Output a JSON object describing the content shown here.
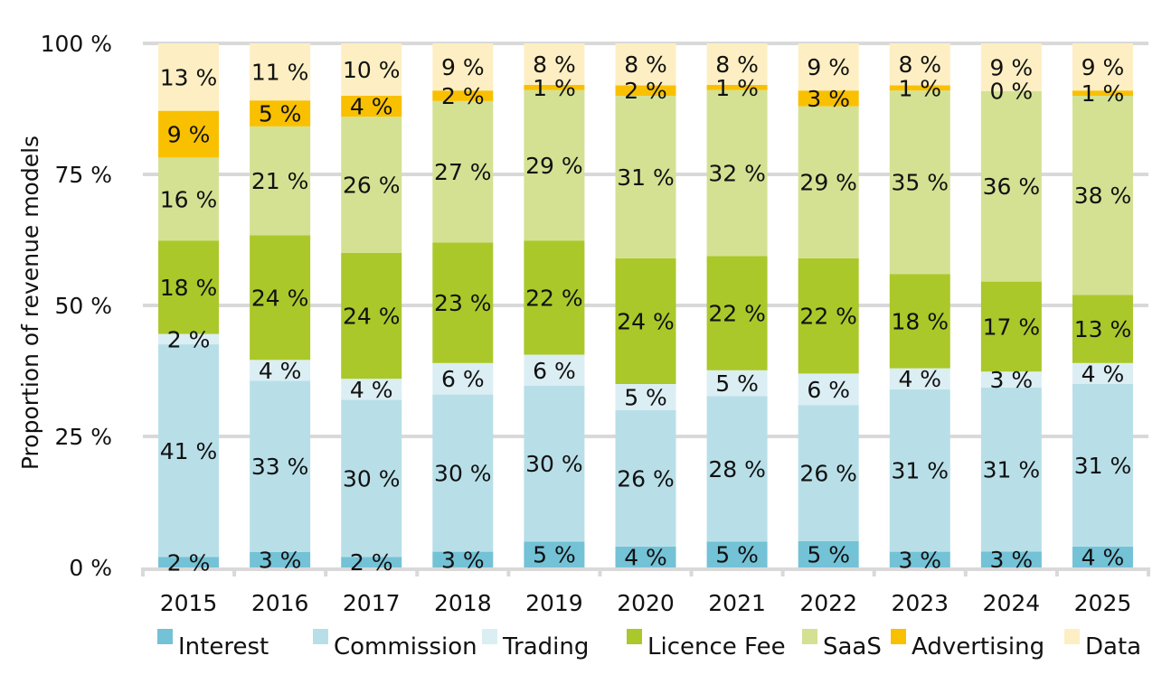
{
  "chart_data": {
    "type": "bar",
    "stacked": true,
    "normalized": true,
    "title": "",
    "xlabel": "",
    "ylabel": "Proportion of revenue models",
    "ylim": [
      0,
      100
    ],
    "yticks": [
      0,
      25,
      50,
      75,
      100
    ],
    "ytick_labels": [
      "0 %",
      "25 %",
      "50 %",
      "75 %",
      "100 %"
    ],
    "grid": true,
    "legend_position": "bottom",
    "categories": [
      "2015",
      "2016",
      "2017",
      "2018",
      "2019",
      "2020",
      "2021",
      "2022",
      "2023",
      "2024",
      "2025"
    ],
    "series": [
      {
        "name": "Interest",
        "color": "#74c2d6",
        "values": [
          2,
          3,
          2,
          3,
          5,
          4,
          5,
          5,
          3,
          3,
          4
        ]
      },
      {
        "name": "Commission",
        "color": "#b8dfe8",
        "values": [
          41,
          33,
          30,
          30,
          30,
          26,
          28,
          26,
          31,
          31,
          31
        ]
      },
      {
        "name": "Trading",
        "color": "#dbeef4",
        "values": [
          2,
          4,
          4,
          6,
          6,
          5,
          5,
          6,
          4,
          3,
          4
        ]
      },
      {
        "name": "Licence Fee",
        "color": "#aac82a",
        "values": [
          18,
          24,
          24,
          23,
          22,
          24,
          22,
          22,
          18,
          17,
          13
        ]
      },
      {
        "name": "SaaS",
        "color": "#d4e193",
        "values": [
          16,
          21,
          26,
          27,
          29,
          31,
          32,
          29,
          35,
          36,
          38
        ]
      },
      {
        "name": "Advertising",
        "color": "#f9c000",
        "values": [
          9,
          5,
          4,
          2,
          1,
          2,
          1,
          3,
          1,
          0,
          1
        ]
      },
      {
        "name": "Data",
        "color": "#fdefc3",
        "values": [
          13,
          11,
          10,
          9,
          8,
          8,
          8,
          9,
          8,
          9,
          9
        ]
      }
    ],
    "value_suffix": " %"
  }
}
